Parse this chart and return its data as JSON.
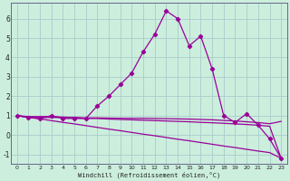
{
  "background_color": "#cceedd",
  "grid_color": "#aacccc",
  "line_color": "#990099",
  "xlim": [
    -0.5,
    23.5
  ],
  "ylim": [
    -1.5,
    6.8
  ],
  "xlabel": "Windchill (Refroidissement éolien,°C)",
  "xticks": [
    0,
    1,
    2,
    3,
    4,
    5,
    6,
    7,
    8,
    9,
    10,
    11,
    12,
    13,
    14,
    15,
    16,
    17,
    18,
    19,
    20,
    21,
    22,
    23
  ],
  "yticks": [
    -1,
    0,
    1,
    2,
    3,
    4,
    5,
    6
  ],
  "curve1_x": [
    0,
    1,
    2,
    3,
    4,
    5,
    6,
    7,
    8,
    9,
    10,
    11,
    12,
    13,
    14,
    15,
    16,
    17,
    18,
    19,
    20,
    21,
    22,
    23
  ],
  "curve1_y": [
    1.0,
    0.9,
    0.85,
    1.0,
    0.85,
    0.85,
    0.85,
    1.5,
    2.0,
    2.6,
    3.2,
    4.3,
    5.2,
    6.4,
    6.0,
    4.6,
    5.1,
    3.4,
    1.0,
    0.65,
    1.1,
    0.5,
    -0.2,
    -1.2
  ],
  "curve2_x": [
    0,
    1,
    2,
    3,
    4,
    5,
    6,
    7,
    8,
    9,
    10,
    11,
    12,
    13,
    14,
    15,
    16,
    17,
    18,
    19,
    20,
    21,
    22,
    23
  ],
  "curve2_y": [
    1.0,
    0.91,
    0.83,
    0.74,
    0.65,
    0.57,
    0.48,
    0.39,
    0.3,
    0.22,
    0.13,
    0.04,
    -0.04,
    -0.13,
    -0.22,
    -0.3,
    -0.39,
    -0.48,
    -0.57,
    -0.65,
    -0.74,
    -0.83,
    -0.91,
    -1.2
  ],
  "curve3_x": [
    0,
    1,
    2,
    3,
    4,
    5,
    6,
    7,
    8,
    9,
    10,
    11,
    12,
    13,
    14,
    15,
    16,
    17,
    18,
    19,
    20,
    21,
    22,
    23
  ],
  "curve3_y": [
    1.0,
    0.9,
    0.9,
    0.9,
    0.9,
    0.9,
    0.85,
    0.85,
    0.82,
    0.8,
    0.78,
    0.76,
    0.74,
    0.72,
    0.7,
    0.68,
    0.65,
    0.63,
    0.6,
    0.57,
    0.54,
    0.5,
    0.45,
    -1.2
  ],
  "curve4_x": [
    0,
    1,
    2,
    3,
    4,
    5,
    6,
    7,
    8,
    9,
    10,
    11,
    12,
    13,
    14,
    15,
    16,
    17,
    18,
    19,
    20,
    21,
    22,
    23
  ],
  "curve4_y": [
    1.0,
    0.95,
    0.95,
    0.95,
    0.92,
    0.9,
    0.88,
    0.88,
    0.87,
    0.86,
    0.86,
    0.86,
    0.85,
    0.84,
    0.83,
    0.82,
    0.8,
    0.78,
    0.75,
    0.72,
    0.68,
    0.64,
    0.58,
    0.7
  ]
}
